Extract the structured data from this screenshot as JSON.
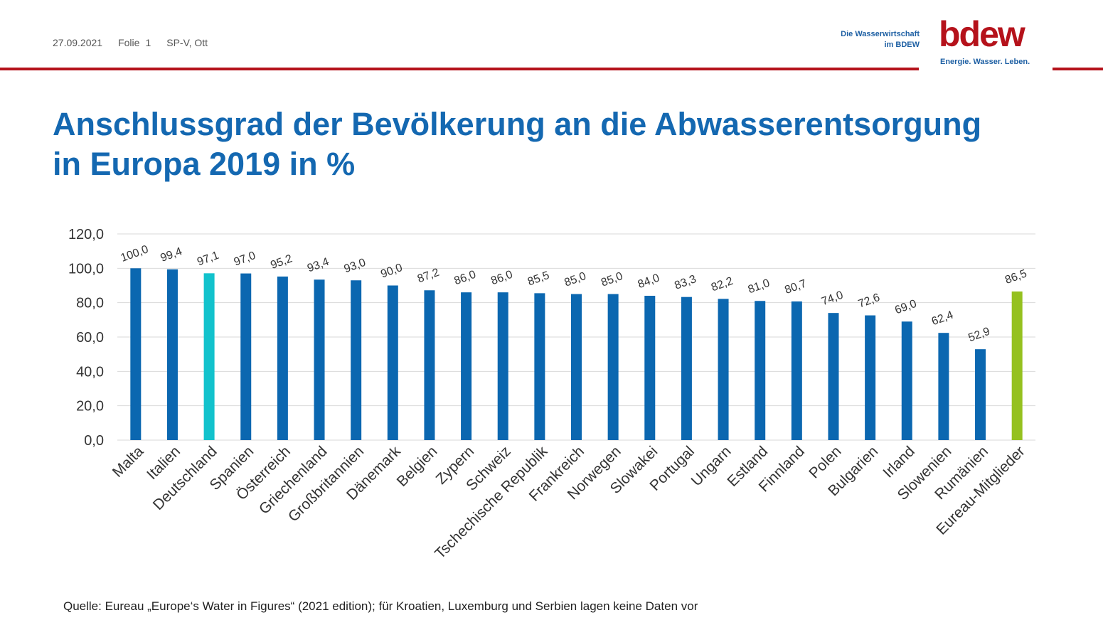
{
  "header": {
    "date": "27.09.2021",
    "slide_label": "Folie",
    "slide_number": "1",
    "author": "SP-V, Ott"
  },
  "brand": {
    "tagline_line1": "Die Wasserwirtschaft",
    "tagline_line2": "im BDEW",
    "logo_text": "bdew",
    "claim": "Energie. Wasser. Leben."
  },
  "title": {
    "line1": "Anschlussgrad der Bevölkerung an die Abwasserentsorgung",
    "line2": "in Europa 2019 in %"
  },
  "colors": {
    "bar_default": "#0b67b0",
    "bar_highlight": "#12c2cc",
    "bar_average": "#95c11f",
    "brand_red": "#b5121b",
    "brand_blue": "#1468b1"
  },
  "chart_data": {
    "type": "bar",
    "categories": [
      "Malta",
      "Italien",
      "Deutschland",
      "Spanien",
      "Österreich",
      "Griechenland",
      "Großbritannien",
      "Dänemark",
      "Belgien",
      "Zypern",
      "Schweiz",
      "Tschechische Republik",
      "Frankreich",
      "Norwegen",
      "Slowakei",
      "Portugal",
      "Ungarn",
      "Estland",
      "Finnland",
      "Polen",
      "Bulgarien",
      "Irland",
      "Slowenien",
      "Rumänien",
      "Eureau-Mitglieder"
    ],
    "values": [
      100.0,
      99.4,
      97.1,
      97.0,
      95.2,
      93.4,
      93.0,
      90.0,
      87.2,
      86.0,
      86.0,
      85.5,
      85.0,
      85.0,
      84.0,
      83.3,
      82.2,
      81.0,
      80.7,
      74.0,
      72.6,
      69.0,
      62.4,
      52.9,
      86.5
    ],
    "value_labels": [
      "100,0",
      "99,4",
      "97,1",
      "97,0",
      "95,2",
      "93,4",
      "93,0",
      "90,0",
      "87,2",
      "86,0",
      "86,0",
      "85,5",
      "85,0",
      "85,0",
      "84,0",
      "83,3",
      "82,2",
      "81,0",
      "80,7",
      "74,0",
      "72,6",
      "69,0",
      "62,4",
      "52,9",
      "86,5"
    ],
    "highlight_index": 2,
    "average_index": 24,
    "ylim": [
      0,
      120
    ],
    "yticks": [
      {
        "value": 0,
        "label": "0,0"
      },
      {
        "value": 20,
        "label": "20,0"
      },
      {
        "value": 40,
        "label": "40,0"
      },
      {
        "value": 60,
        "label": "60,0"
      },
      {
        "value": 80,
        "label": "80,0"
      },
      {
        "value": 100,
        "label": "100,0"
      },
      {
        "value": 120,
        "label": "120,0"
      }
    ],
    "grid": true,
    "legend": "none",
    "xlabel": "",
    "ylabel": ""
  },
  "source": {
    "text": "Quelle: Eureau „Europe‘s Water in Figures“ (2021 edition); für Kroatien, Luxemburg und Serbien lagen keine Daten vor"
  }
}
